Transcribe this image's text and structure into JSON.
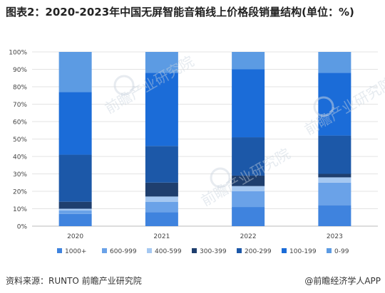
{
  "title": "图表2：2020-2023年中国无屏智能音箱线上价格段销量结构(单位：%)",
  "source": "资料来源：RUNTO 前瞻产业研究院",
  "brand": "@前瞻经济学人APP",
  "watermark": "前瞻产业研究院",
  "chart_data": {
    "type": "bar",
    "stacked": true,
    "categories": [
      "2020",
      "2021",
      "2022",
      "2023"
    ],
    "ylim": [
      0,
      100
    ],
    "yticks": [
      "0%",
      "10%",
      "20%",
      "30%",
      "40%",
      "50%",
      "60%",
      "70%",
      "80%",
      "90%",
      "100%"
    ],
    "grid": true,
    "legend_position": "bottom",
    "series": [
      {
        "name": "1000+",
        "color": "#3f83de",
        "values": [
          7,
          8,
          11,
          12
        ]
      },
      {
        "name": "600-999",
        "color": "#6aa2e8",
        "values": [
          2,
          6,
          9,
          13
        ]
      },
      {
        "name": "400-599",
        "color": "#a5c8f1",
        "values": [
          1,
          3,
          3,
          3
        ]
      },
      {
        "name": "300-399",
        "color": "#1f3f6e",
        "values": [
          4,
          8,
          6,
          2
        ]
      },
      {
        "name": "200-299",
        "color": "#1c58a8",
        "values": [
          27,
          21,
          22,
          22
        ]
      },
      {
        "name": "100-199",
        "color": "#1b6cd8",
        "values": [
          36,
          42,
          39,
          36
        ]
      },
      {
        "name": "0-99",
        "color": "#5c9be3",
        "values": [
          23,
          12,
          10,
          12
        ]
      }
    ]
  }
}
